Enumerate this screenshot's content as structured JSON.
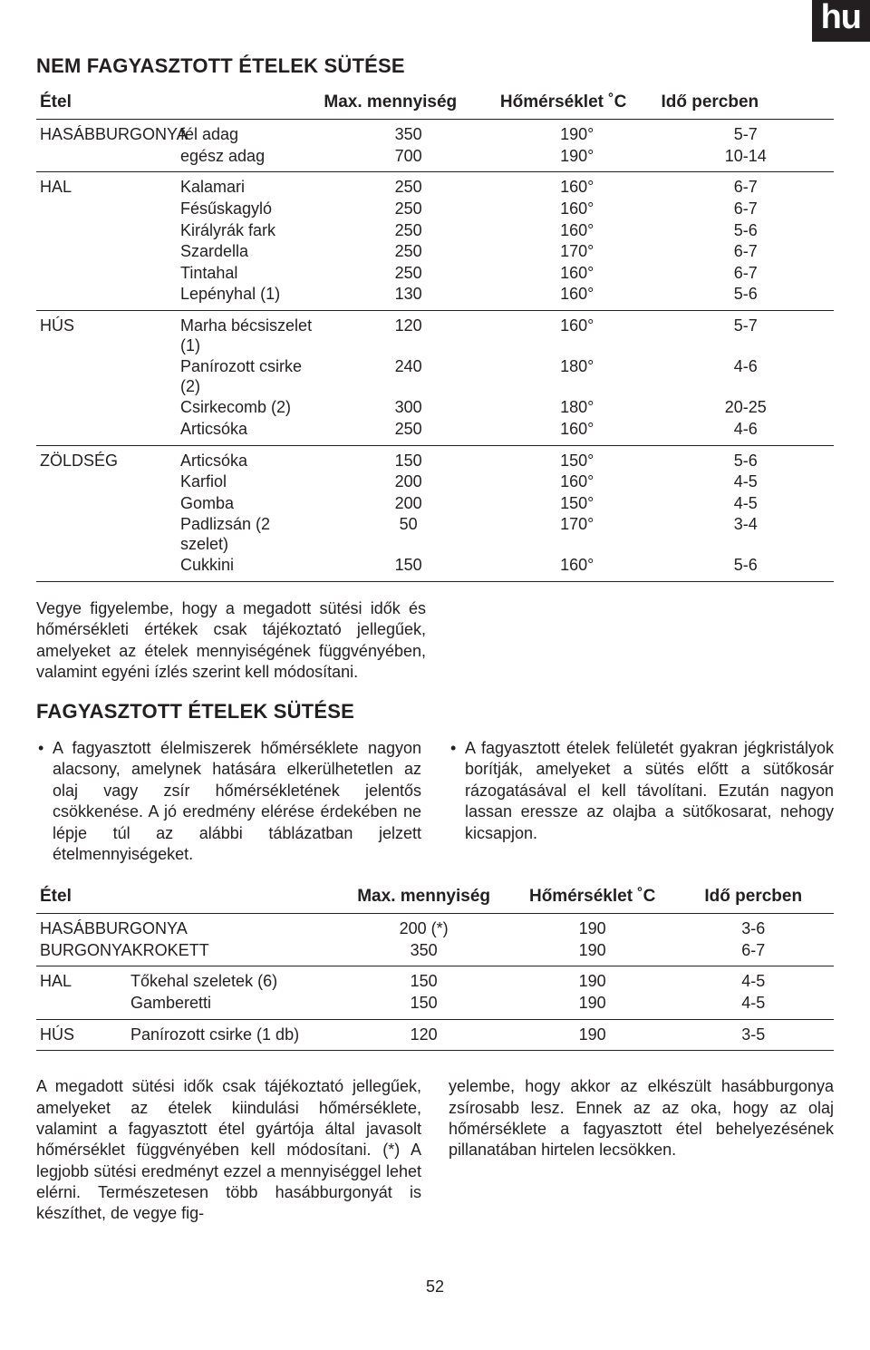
{
  "lang_badge": "hu",
  "title1": "NEM FAGYASZTOTT ÉTELEK SÜTÉSE",
  "table1": {
    "columns": [
      "Étel",
      "Max. mennyiség",
      "Hőmérséklet ˚C",
      "Idő percben"
    ],
    "groups": [
      {
        "rows": [
          {
            "cat": "HASÁBBURGONYA",
            "item": "fél adag",
            "qty": "350",
            "temp": "190°",
            "time": "5-7"
          },
          {
            "cat": "",
            "item": "egész adag",
            "qty": "700",
            "temp": "190°",
            "time": "10-14"
          }
        ]
      },
      {
        "rows": [
          {
            "cat": "HAL",
            "item": "Kalamari",
            "qty": "250",
            "temp": "160°",
            "time": "6-7"
          },
          {
            "cat": "",
            "item": "Fésűskagyló",
            "qty": "250",
            "temp": "160°",
            "time": "6-7"
          },
          {
            "cat": "",
            "item": "Királyrák fark",
            "qty": "250",
            "temp": "160°",
            "time": "5-6"
          },
          {
            "cat": "",
            "item": "Szardella",
            "qty": "250",
            "temp": "170°",
            "time": "6-7"
          },
          {
            "cat": "",
            "item": "Tintahal",
            "qty": "250",
            "temp": "160°",
            "time": "6-7"
          },
          {
            "cat": "",
            "item": "Lepényhal (1)",
            "qty": "130",
            "temp": "160°",
            "time": "5-6"
          }
        ]
      },
      {
        "rows": [
          {
            "cat": "HÚS",
            "item": "Marha bécsiszelet (1)",
            "qty": "120",
            "temp": "160°",
            "time": "5-7"
          },
          {
            "cat": "",
            "item": "Panírozott csirke (2)",
            "qty": "240",
            "temp": "180°",
            "time": "4-6"
          },
          {
            "cat": "",
            "item": "Csirkecomb (2)",
            "qty": "300",
            "temp": "180°",
            "time": "20-25"
          },
          {
            "cat": "",
            "item": "Articsóka",
            "qty": "250",
            "temp": "160°",
            "time": "4-6"
          }
        ]
      },
      {
        "rows": [
          {
            "cat": "ZÖLDSÉG",
            "item": "Articsóka",
            "qty": "150",
            "temp": "150°",
            "time": "5-6"
          },
          {
            "cat": "",
            "item": "Karfiol",
            "qty": "200",
            "temp": "160°",
            "time": "4-5"
          },
          {
            "cat": "",
            "item": "Gomba",
            "qty": "200",
            "temp": "150°",
            "time": "4-5"
          },
          {
            "cat": "",
            "item": "Padlizsán (2 szelet)",
            "qty": "50",
            "temp": "170°",
            "time": "3-4"
          },
          {
            "cat": "",
            "item": "Cukkini",
            "qty": "150",
            "temp": "160°",
            "time": "5-6"
          }
        ]
      }
    ]
  },
  "para1": "Vegye figyelembe, hogy a megadott sütési idők és hőmérsékleti értékek csak tájékoztató jellegűek, amelyeket az ételek mennyiségének függvényében, valamint egyéni ízlés szerint kell módosítani.",
  "title2": "FAGYASZTOTT ÉTELEK SÜTÉSE",
  "bullets_left": [
    "A fagyasztott élelmiszerek hőmérséklete nagyon alacsony, amelynek hatására elkerülhetetlen az olaj vagy zsír hőmérsékletének jelentős csökkenése. A jó eredmény elérése érdekében ne lépje túl az alábbi táblázatban jelzett ételmennyiségeket."
  ],
  "bullets_right": [
    "A fagyasztott ételek felületét gyakran jégkristályok borítják, amelyeket a sütés előtt a sütőkosár rázogatásával el kell távolítani. Ezután nagyon lassan eressze az olajba a sütőkosarat, nehogy kicsapjon."
  ],
  "table2": {
    "columns": [
      "Étel",
      "Max. mennyiség",
      "Hőmérséklet ˚C",
      "Idő percben"
    ],
    "groups": [
      {
        "rows": [
          {
            "cat": "HASÁBBURGONYA",
            "item": "",
            "qty": "200 (*)",
            "temp": "190",
            "time": "3-6"
          },
          {
            "cat": "BURGONYAKROKETT",
            "item": "",
            "qty": "350",
            "temp": "190",
            "time": "6-7"
          }
        ]
      },
      {
        "rows": [
          {
            "cat": "HAL",
            "item": "Tőkehal szeletek (6)",
            "qty": "150",
            "temp": "190",
            "time": "4-5"
          },
          {
            "cat": "",
            "item": "Gamberetti",
            "qty": "150",
            "temp": "190",
            "time": "4-5"
          }
        ]
      },
      {
        "rows": [
          {
            "cat": "HÚS",
            "item": "Panírozott csirke (1 db)",
            "qty": "120",
            "temp": "190",
            "time": "3-5"
          }
        ]
      }
    ]
  },
  "para2_left": "A megadott sütési idők csak tájékoztató jellegűek, amelyeket az ételek kiindulási hőmérséklete, valamint a fagyasztott étel gyártója által javasolt hőmérséklet függvényében kell módosítani. (*) A legjobb sütési eredményt ezzel a mennyiséggel lehet elérni. Természetesen több hasábburgonyát is készíthet, de vegye fig-",
  "para2_right": "yelembe, hogy akkor az elkészült hasábburgonya zsírosabb lesz. Ennek az az oka, hogy az olaj hőmérséklete a fagyasztott étel behelyezésének pillanatában hirtelen lecsökken.",
  "page_number": "52"
}
